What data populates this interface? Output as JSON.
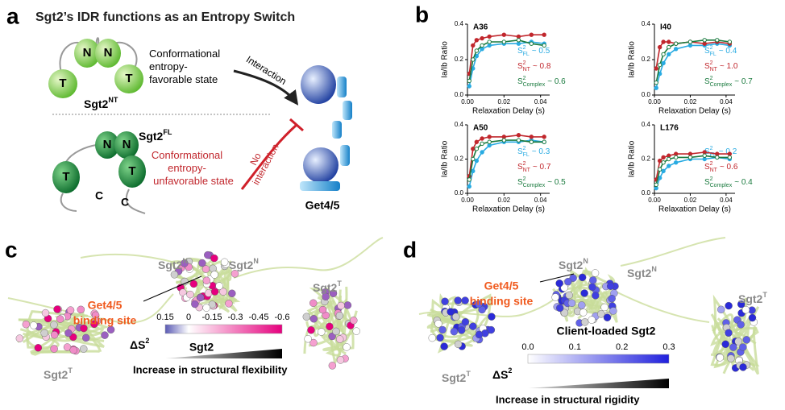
{
  "panel_a": {
    "label": "a",
    "title": "Sgt2’s IDR functions as an Entropy Switch",
    "nt_name": "Sgt2",
    "nt_sup": "NT",
    "fl_name": "Sgt2",
    "fl_sup": "FL",
    "domains_top": [
      "N",
      "N",
      "T",
      "T"
    ],
    "domains_bottom": [
      "N",
      "N",
      "T",
      "T",
      "C",
      "C"
    ],
    "favorable_lines": [
      "Conformational",
      "entropy-",
      "favorable state"
    ],
    "unfavorable_lines": [
      "Conformational",
      "entropy-",
      "unfavorable state"
    ],
    "interaction": "Interaction",
    "no_interaction_lines": [
      "No",
      "interaction"
    ],
    "partner": "Get4/5"
  },
  "panel_b": {
    "label": "b"
  },
  "chart_data": [
    {
      "type": "scatter",
      "title": "A36",
      "x_label": "Relaxation Delay (s)",
      "y_label": "Ia/Ib Ratio",
      "s2_symbol": "S",
      "s2_power": "2",
      "x": [
        0.001,
        0.003,
        0.005,
        0.008,
        0.012,
        0.02,
        0.028,
        0.035,
        0.042
      ],
      "xlim": [
        0,
        0.045
      ],
      "xticks": [
        {
          "value": 0,
          "label": "0.00"
        },
        {
          "value": 0.02,
          "label": "0.02"
        },
        {
          "value": 0.04,
          "label": "0.04"
        }
      ],
      "ylim": [
        0,
        0.4
      ],
      "yticks": [
        {
          "value": 0,
          "label": "0.0"
        },
        {
          "value": 0.2,
          "label": "0.2"
        },
        {
          "value": 0.4,
          "label": "0.4"
        }
      ],
      "series": [
        {
          "name": "FL",
          "color": "#29abe2",
          "annotation": "~ 0.5",
          "values": [
            0.05,
            0.15,
            0.22,
            0.26,
            0.28,
            0.29,
            0.29,
            0.3,
            0.29
          ]
        },
        {
          "name": "NT",
          "color": "#c1272d",
          "annotation": "~ 0.8",
          "values": [
            0.12,
            0.28,
            0.31,
            0.32,
            0.33,
            0.34,
            0.33,
            0.34,
            0.34
          ]
        },
        {
          "name": "Complex",
          "color": "#1a7a3e",
          "annotation": "~ 0.6",
          "values": [
            0.08,
            0.2,
            0.25,
            0.28,
            0.3,
            0.3,
            0.31,
            0.29,
            0.28
          ]
        }
      ]
    },
    {
      "type": "scatter",
      "title": "I40",
      "x_label": "Relaxation Delay (s)",
      "y_label": "Ia/Ib Ratio",
      "s2_symbol": "S",
      "s2_power": "2",
      "x": [
        0.001,
        0.003,
        0.005,
        0.008,
        0.012,
        0.02,
        0.028,
        0.035,
        0.042
      ],
      "xlim": [
        0,
        0.045
      ],
      "xticks": [
        {
          "value": 0,
          "label": "0.00"
        },
        {
          "value": 0.02,
          "label": "0.02"
        },
        {
          "value": 0.04,
          "label": "0.04"
        }
      ],
      "ylim": [
        0,
        0.4
      ],
      "yticks": [
        {
          "value": 0,
          "label": "0.0"
        },
        {
          "value": 0.2,
          "label": "0.2"
        },
        {
          "value": 0.4,
          "label": "0.4"
        }
      ],
      "series": [
        {
          "name": "FL",
          "color": "#29abe2",
          "annotation": "~ 0.4",
          "values": [
            0.04,
            0.12,
            0.18,
            0.23,
            0.26,
            0.28,
            0.28,
            0.29,
            0.28
          ]
        },
        {
          "name": "NT",
          "color": "#c1272d",
          "annotation": "~ 1.0",
          "values": [
            0.15,
            0.27,
            0.3,
            0.3,
            0.29,
            0.3,
            0.29,
            0.3,
            0.29
          ]
        },
        {
          "name": "Complex",
          "color": "#1a7a3e",
          "annotation": "~ 0.7",
          "values": [
            0.07,
            0.17,
            0.23,
            0.27,
            0.29,
            0.3,
            0.31,
            0.31,
            0.3
          ]
        }
      ]
    },
    {
      "type": "scatter",
      "title": "A50",
      "x_label": "Relaxation Delay (s)",
      "y_label": "Ia/Ib Ratio",
      "s2_symbol": "S",
      "s2_power": "2",
      "x": [
        0.001,
        0.003,
        0.005,
        0.008,
        0.012,
        0.02,
        0.028,
        0.035,
        0.042
      ],
      "xlim": [
        0,
        0.045
      ],
      "xticks": [
        {
          "value": 0,
          "label": "0.00"
        },
        {
          "value": 0.02,
          "label": "0.02"
        },
        {
          "value": 0.04,
          "label": "0.04"
        }
      ],
      "ylim": [
        0,
        0.4
      ],
      "yticks": [
        {
          "value": 0,
          "label": "0.0"
        },
        {
          "value": 0.2,
          "label": "0.2"
        },
        {
          "value": 0.4,
          "label": "0.4"
        }
      ],
      "series": [
        {
          "name": "FL",
          "color": "#29abe2",
          "annotation": "~ 0.3",
          "values": [
            0.04,
            0.13,
            0.19,
            0.24,
            0.28,
            0.3,
            0.3,
            0.31,
            0.3
          ]
        },
        {
          "name": "NT",
          "color": "#c1272d",
          "annotation": "~ 0.7",
          "values": [
            0.1,
            0.26,
            0.3,
            0.32,
            0.33,
            0.33,
            0.34,
            0.33,
            0.33
          ]
        },
        {
          "name": "Complex",
          "color": "#1a7a3e",
          "annotation": "~ 0.5",
          "values": [
            0.08,
            0.2,
            0.26,
            0.29,
            0.3,
            0.31,
            0.31,
            0.3,
            0.3
          ]
        }
      ]
    },
    {
      "type": "scatter",
      "title": "L176",
      "x_label": "Relaxation Delay (s)",
      "y_label": "Ia/Ib Ratio",
      "s2_symbol": "S",
      "s2_power": "2",
      "x": [
        0.001,
        0.003,
        0.005,
        0.008,
        0.012,
        0.02,
        0.028,
        0.035,
        0.042
      ],
      "xlim": [
        0,
        0.045
      ],
      "xticks": [
        {
          "value": 0,
          "label": "0.00"
        },
        {
          "value": 0.02,
          "label": "0.02"
        },
        {
          "value": 0.04,
          "label": "0.04"
        }
      ],
      "ylim": [
        0,
        0.4
      ],
      "yticks": [
        {
          "value": 0,
          "label": "0.0"
        },
        {
          "value": 0.2,
          "label": "0.2"
        },
        {
          "value": 0.4,
          "label": "0.4"
        }
      ],
      "series": [
        {
          "name": "FL",
          "color": "#29abe2",
          "annotation": "~ 0.2",
          "values": [
            0.03,
            0.09,
            0.13,
            0.16,
            0.18,
            0.2,
            0.2,
            0.21,
            0.2
          ]
        },
        {
          "name": "NT",
          "color": "#c1272d",
          "annotation": "~ 0.6",
          "values": [
            0.08,
            0.19,
            0.21,
            0.22,
            0.23,
            0.23,
            0.24,
            0.23,
            0.23
          ]
        },
        {
          "name": "Complex",
          "color": "#1a7a3e",
          "annotation": "~ 0.4",
          "values": [
            0.05,
            0.14,
            0.18,
            0.2,
            0.21,
            0.21,
            0.22,
            0.21,
            0.21
          ]
        }
      ]
    }
  ],
  "panel_c": {
    "label": "c",
    "domain_labels": [
      [
        "Sgt2",
        "N"
      ],
      [
        "Sgt2",
        "N"
      ],
      [
        "Sgt2",
        "T"
      ],
      [
        "Sgt2",
        "T"
      ]
    ],
    "site_lines": [
      "Get4/5",
      "binding site"
    ],
    "center": "Sgt2",
    "colorbar": {
      "symbol": "ΔS",
      "power": "2",
      "ticks": [
        "0.15",
        "0",
        "-0.15",
        "-0.3",
        "-0.45",
        "-0.6"
      ],
      "caption": "Increase in structural flexibility"
    }
  },
  "panel_d": {
    "label": "d",
    "domain_labels": [
      [
        "Sgt2",
        "N"
      ],
      [
        "Sgt2",
        "N"
      ],
      [
        "Sgt2",
        "T"
      ],
      [
        "Sgt2",
        "T"
      ]
    ],
    "site_lines": [
      "Get4/5",
      "binding site"
    ],
    "center": "Client-loaded Sgt2",
    "colorbar": {
      "symbol": "ΔS",
      "power": "2",
      "ticks": [
        "0.0",
        "0.1",
        "0.2",
        "0.3"
      ],
      "caption": "Increase in structural rigidity"
    }
  }
}
